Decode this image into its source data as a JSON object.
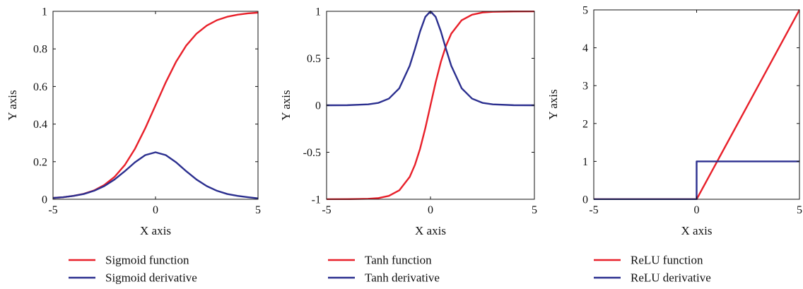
{
  "chart_data": [
    {
      "type": "line",
      "xlabel": "X axis",
      "ylabel": "Y axis",
      "xlim": [
        -5,
        5
      ],
      "ylim": [
        0,
        1
      ],
      "xticks": [
        -5,
        0,
        5
      ],
      "xtick_labels": [
        "-5",
        "0",
        "5"
      ],
      "yticks": [
        0,
        0.2,
        0.4,
        0.6,
        0.8,
        1
      ],
      "ytick_labels": [
        "0",
        "0.2",
        "0.4",
        "0.6",
        "0.8",
        "1"
      ],
      "grid": false,
      "legend_position": "bottom",
      "series": [
        {
          "name": "Sigmoid function",
          "color": "#e8202a",
          "x": [
            -5,
            -4.5,
            -4,
            -3.5,
            -3,
            -2.5,
            -2,
            -1.5,
            -1,
            -0.5,
            0,
            0.5,
            1,
            1.5,
            2,
            2.5,
            3,
            3.5,
            4,
            4.5,
            5
          ],
          "y": [
            0.007,
            0.011,
            0.018,
            0.029,
            0.047,
            0.076,
            0.119,
            0.182,
            0.269,
            0.378,
            0.5,
            0.622,
            0.731,
            0.818,
            0.881,
            0.924,
            0.953,
            0.971,
            0.982,
            0.989,
            0.993
          ]
        },
        {
          "name": "Sigmoid derivative",
          "color": "#2b2f8f",
          "x": [
            -5,
            -4.5,
            -4,
            -3.5,
            -3,
            -2.5,
            -2,
            -1.5,
            -1,
            -0.5,
            0,
            0.5,
            1,
            1.5,
            2,
            2.5,
            3,
            3.5,
            4,
            4.5,
            5
          ],
          "y": [
            0.007,
            0.011,
            0.018,
            0.028,
            0.045,
            0.07,
            0.105,
            0.149,
            0.197,
            0.235,
            0.25,
            0.235,
            0.197,
            0.149,
            0.105,
            0.07,
            0.045,
            0.028,
            0.018,
            0.011,
            0.005
          ]
        }
      ]
    },
    {
      "type": "line",
      "xlabel": "X axis",
      "ylabel": "Y axis",
      "xlim": [
        -5,
        5
      ],
      "ylim": [
        -1,
        1
      ],
      "xticks": [
        -5,
        0,
        5
      ],
      "xtick_labels": [
        "-5",
        "0",
        "5"
      ],
      "yticks": [
        -1,
        -0.5,
        0,
        0.5,
        1
      ],
      "ytick_labels": [
        "-1",
        "-0.5",
        "0",
        "0.5",
        "1"
      ],
      "grid": false,
      "legend_position": "bottom",
      "series": [
        {
          "name": "Tanh function",
          "color": "#e8202a",
          "x": [
            -5,
            -4,
            -3,
            -2.5,
            -2,
            -1.5,
            -1,
            -0.75,
            -0.5,
            -0.25,
            0,
            0.25,
            0.5,
            0.75,
            1,
            1.5,
            2,
            2.5,
            3,
            4,
            5
          ],
          "y": [
            -1,
            -0.999,
            -0.995,
            -0.987,
            -0.964,
            -0.905,
            -0.762,
            -0.635,
            -0.462,
            -0.245,
            0,
            0.245,
            0.462,
            0.635,
            0.762,
            0.905,
            0.964,
            0.987,
            0.995,
            0.999,
            1
          ]
        },
        {
          "name": "Tanh derivative",
          "color": "#2b2f8f",
          "x": [
            -5,
            -4,
            -3,
            -2.5,
            -2,
            -1.5,
            -1,
            -0.75,
            -0.5,
            -0.25,
            0,
            0.25,
            0.5,
            0.75,
            1,
            1.5,
            2,
            2.5,
            3,
            4,
            5
          ],
          "y": [
            0,
            0.001,
            0.01,
            0.026,
            0.071,
            0.181,
            0.42,
            0.597,
            0.786,
            0.94,
            1,
            0.94,
            0.786,
            0.597,
            0.42,
            0.181,
            0.071,
            0.026,
            0.01,
            0.001,
            0
          ]
        }
      ]
    },
    {
      "type": "line",
      "xlabel": "X axis",
      "ylabel": "Y axis",
      "xlim": [
        -5,
        5
      ],
      "ylim": [
        0,
        5
      ],
      "xticks": [
        -5,
        0,
        5
      ],
      "xtick_labels": [
        "-5",
        "0",
        "5"
      ],
      "yticks": [
        0,
        1,
        2,
        3,
        4,
        5
      ],
      "ytick_labels": [
        "0",
        "1",
        "2",
        "3",
        "4",
        "5"
      ],
      "grid": false,
      "legend_position": "bottom",
      "series": [
        {
          "name": "ReLU function",
          "color": "#e8202a",
          "x": [
            -5,
            0,
            5
          ],
          "y": [
            0,
            0,
            5
          ]
        },
        {
          "name": "ReLU derivative",
          "color": "#2b2f8f",
          "x": [
            -5,
            0,
            0,
            5
          ],
          "y": [
            0,
            0,
            1,
            1
          ]
        }
      ]
    }
  ]
}
